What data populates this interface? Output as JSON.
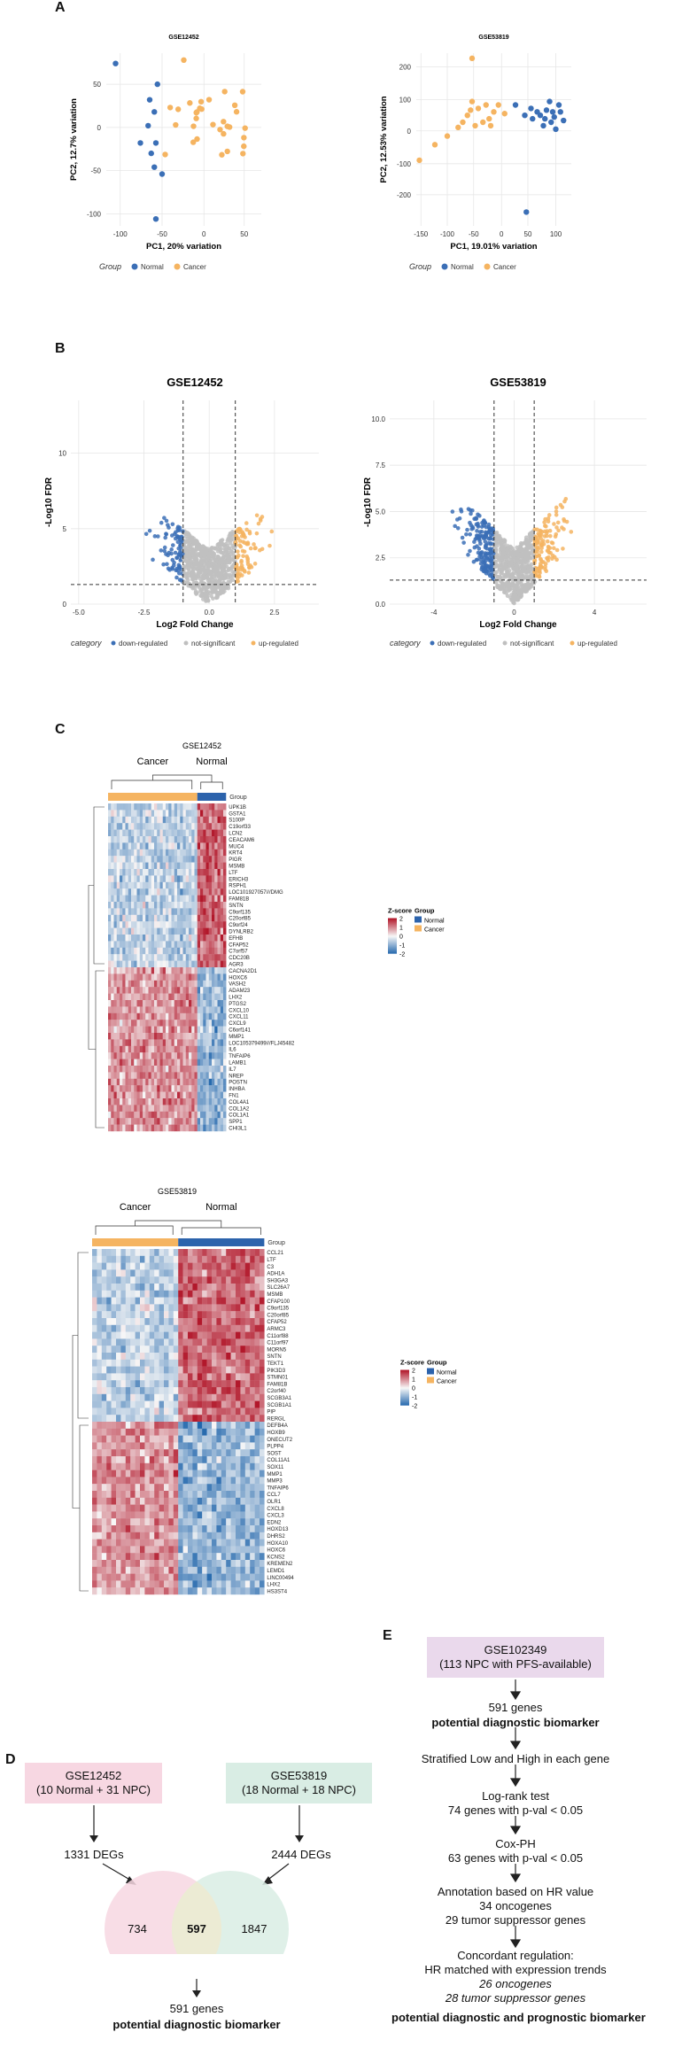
{
  "panels": {
    "A": "A",
    "B": "B",
    "C": "C",
    "D": "D",
    "E": "E"
  },
  "pca": [
    {
      "title": "GSE12452",
      "xlabel": "PC1, 20% variation",
      "ylabel": "PC2, 12.7% variation",
      "xticks": [
        "-100",
        "-50",
        "0",
        "50"
      ],
      "yticks": [
        "50",
        "0",
        "-50",
        "-100"
      ]
    },
    {
      "title": "GSE53819",
      "xlabel": "PC1, 19.01% variation",
      "ylabel": "PC2, 12.53% variation",
      "xticks": [
        "-150",
        "-100",
        "-50",
        "0",
        "50",
        "100"
      ],
      "yticks": [
        "200",
        "100",
        "0",
        "-100",
        "-200"
      ]
    }
  ],
  "pca_legend": {
    "title": "Group",
    "normal": "Normal",
    "cancer": "Cancer"
  },
  "volcano": [
    {
      "title": "GSE12452",
      "xlabel": "Log2 Fold Change",
      "ylabel": "-Log10 FDR",
      "xticks": [
        "-5.0",
        "-2.5",
        "0.0",
        "2.5"
      ],
      "yticks": [
        "10",
        "5",
        "0"
      ]
    },
    {
      "title": "GSE53819",
      "xlabel": "Log2 Fold Change",
      "ylabel": "-Log10 FDR",
      "xticks": [
        "-4",
        "0",
        "4"
      ],
      "yticks": [
        "10.0",
        "7.5",
        "5.0",
        "2.5",
        "0.0"
      ]
    }
  ],
  "volcano_legend": {
    "title": "category",
    "down": "down-regulated",
    "ns": "not-significant",
    "up": "up-regulated"
  },
  "heatmap1": {
    "title": "GSE12452",
    "cancer": "Cancer",
    "normal": "Normal",
    "group": "Group",
    "genes": [
      "UPK1B",
      "GSTA1",
      "S100P",
      "C19orf33",
      "LCN2",
      "CEACAM6",
      "MUC4",
      "KRT4",
      "PIGR",
      "MSMB",
      "LTF",
      "ERICH3",
      "RSPH1",
      "LOC101927057///DMG",
      "FAM81B",
      "SNTN",
      "C9orf135",
      "C20orf85",
      "C9orf24",
      "DYNLRB2",
      "EFHB",
      "CFAP52",
      "C7orf57",
      "CDC20B",
      "AGR3",
      "CACNA2D1",
      "HOXC6",
      "VASH2",
      "ADAM23",
      "LHX2",
      "PTGS2",
      "CXCL10",
      "CXCL11",
      "CXCL9",
      "C6orf141",
      "MMP1",
      "LOC105379499///FLJ45482",
      "IL6",
      "TNFAIP6",
      "LAMB1",
      "IL7",
      "NREP",
      "POSTN",
      "INHBA",
      "FN1",
      "COL4A1",
      "COL1A2",
      "COL1A1",
      "SPP1",
      "CHI3L1"
    ]
  },
  "heatmap2": {
    "title": "GSE53819",
    "cancer": "Cancer",
    "normal": "Normal",
    "group": "Group",
    "genes": [
      "CCL21",
      "LTF",
      "C3",
      "ADH1A",
      "SH3GA3",
      "SLC26A7",
      "MSMB",
      "CFAP100",
      "C9orf135",
      "C20orf85",
      "CFAP52",
      "ARMC3",
      "C11orf88",
      "C11orf97",
      "MORN5",
      "SNTN",
      "TEKT1",
      "PIK3D3",
      "STMN01",
      "FAM81B",
      "C2orf40",
      "SCGB3A1",
      "SCGB1A1",
      "PIP",
      "RERGL",
      "DEFB4A",
      "HOXB9",
      "ONECUT2",
      "PLPP4",
      "SOST",
      "COL11A1",
      "SOX11",
      "MMP1",
      "MMP3",
      "TNFAIP6",
      "CCL7",
      "OLR1",
      "CXCL8",
      "CXCL3",
      "EDN2",
      "HOXD13",
      "DHRS2",
      "HOXA10",
      "HOXC6",
      "KCNS2",
      "KREMEN2",
      "LEMD1",
      "LINC00494",
      "LHX2",
      "HS3ST4"
    ]
  },
  "heat_legend": {
    "zscore": "Z-score",
    "ticks": [
      "2",
      "1",
      "0",
      "-1",
      "-2"
    ],
    "group": "Group",
    "normal": "Normal",
    "cancer": "Cancer"
  },
  "venn": {
    "left_box": "GSE12452\n(10 Normal + 31 NPC)",
    "right_box": "GSE53819\n(18 Normal + 18 NPC)",
    "left_degs": "1331 DEGs",
    "right_degs": "2444 DEGs",
    "left_only": "734",
    "overlap": "597",
    "right_only": "1847",
    "genes": "591 genes",
    "biomarker": "potential diagnostic biomarker"
  },
  "flow": {
    "box": "GSE102349\n(113 NPC with PFS-available)",
    "genes": "591 genes",
    "biomarker": "potential diagnostic biomarker",
    "strat": "Stratified Low and High in each gene",
    "logrank1": "Log-rank test",
    "logrank2": "74 genes with p-val < 0.05",
    "cox1": "Cox-PH",
    "cox2": "63 genes with p-val < 0.05",
    "anno1": "Annotation based on HR value",
    "anno2": "34 oncogenes",
    "anno3": "29 tumor suppressor genes",
    "conc1": "Concordant regulation:",
    "conc2": "HR matched with expression trends",
    "conc3": "26 oncogenes",
    "conc4": "28 tumor suppressor genes",
    "final": "potential diagnostic and prognostic biomarker"
  },
  "colors": {
    "normal": "#3b6fb6",
    "cancer": "#f5b461",
    "gray": "#bfbfbf",
    "red": "#b2182b",
    "blue": "#2c63ac",
    "pink": "#f7d7e2",
    "green": "#d9ede4",
    "lilac": "#ead9ec"
  }
}
